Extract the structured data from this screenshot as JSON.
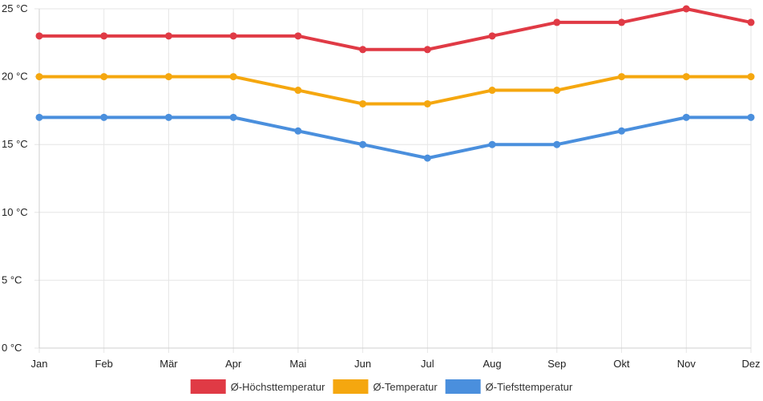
{
  "chart_data": {
    "type": "line",
    "categories": [
      "Jan",
      "Feb",
      "Mär",
      "Apr",
      "Mai",
      "Jun",
      "Jul",
      "Aug",
      "Sep",
      "Okt",
      "Nov",
      "Dez"
    ],
    "y_ticks": [
      "0 °C",
      "5 °C",
      "10 °C",
      "15 °C",
      "20 °C",
      "25 °C"
    ],
    "ylim": [
      0,
      25
    ],
    "unit": "°C",
    "grid": true,
    "legend_position": "bottom",
    "series": [
      {
        "name": "Ø-Höchsttemperatur",
        "color": "#e03a45",
        "values": [
          23,
          23,
          23,
          23,
          23,
          22,
          22,
          23,
          24,
          24,
          25,
          24
        ]
      },
      {
        "name": "Ø-Temperatur",
        "color": "#f5a70f",
        "values": [
          20,
          20,
          20,
          20,
          19,
          18,
          18,
          19,
          19,
          20,
          20,
          20
        ]
      },
      {
        "name": "Ø-Tiefsttemperatur",
        "color": "#4a8fdd",
        "values": [
          17,
          17,
          17,
          17,
          16,
          15,
          14,
          15,
          15,
          16,
          17,
          17
        ]
      }
    ]
  }
}
